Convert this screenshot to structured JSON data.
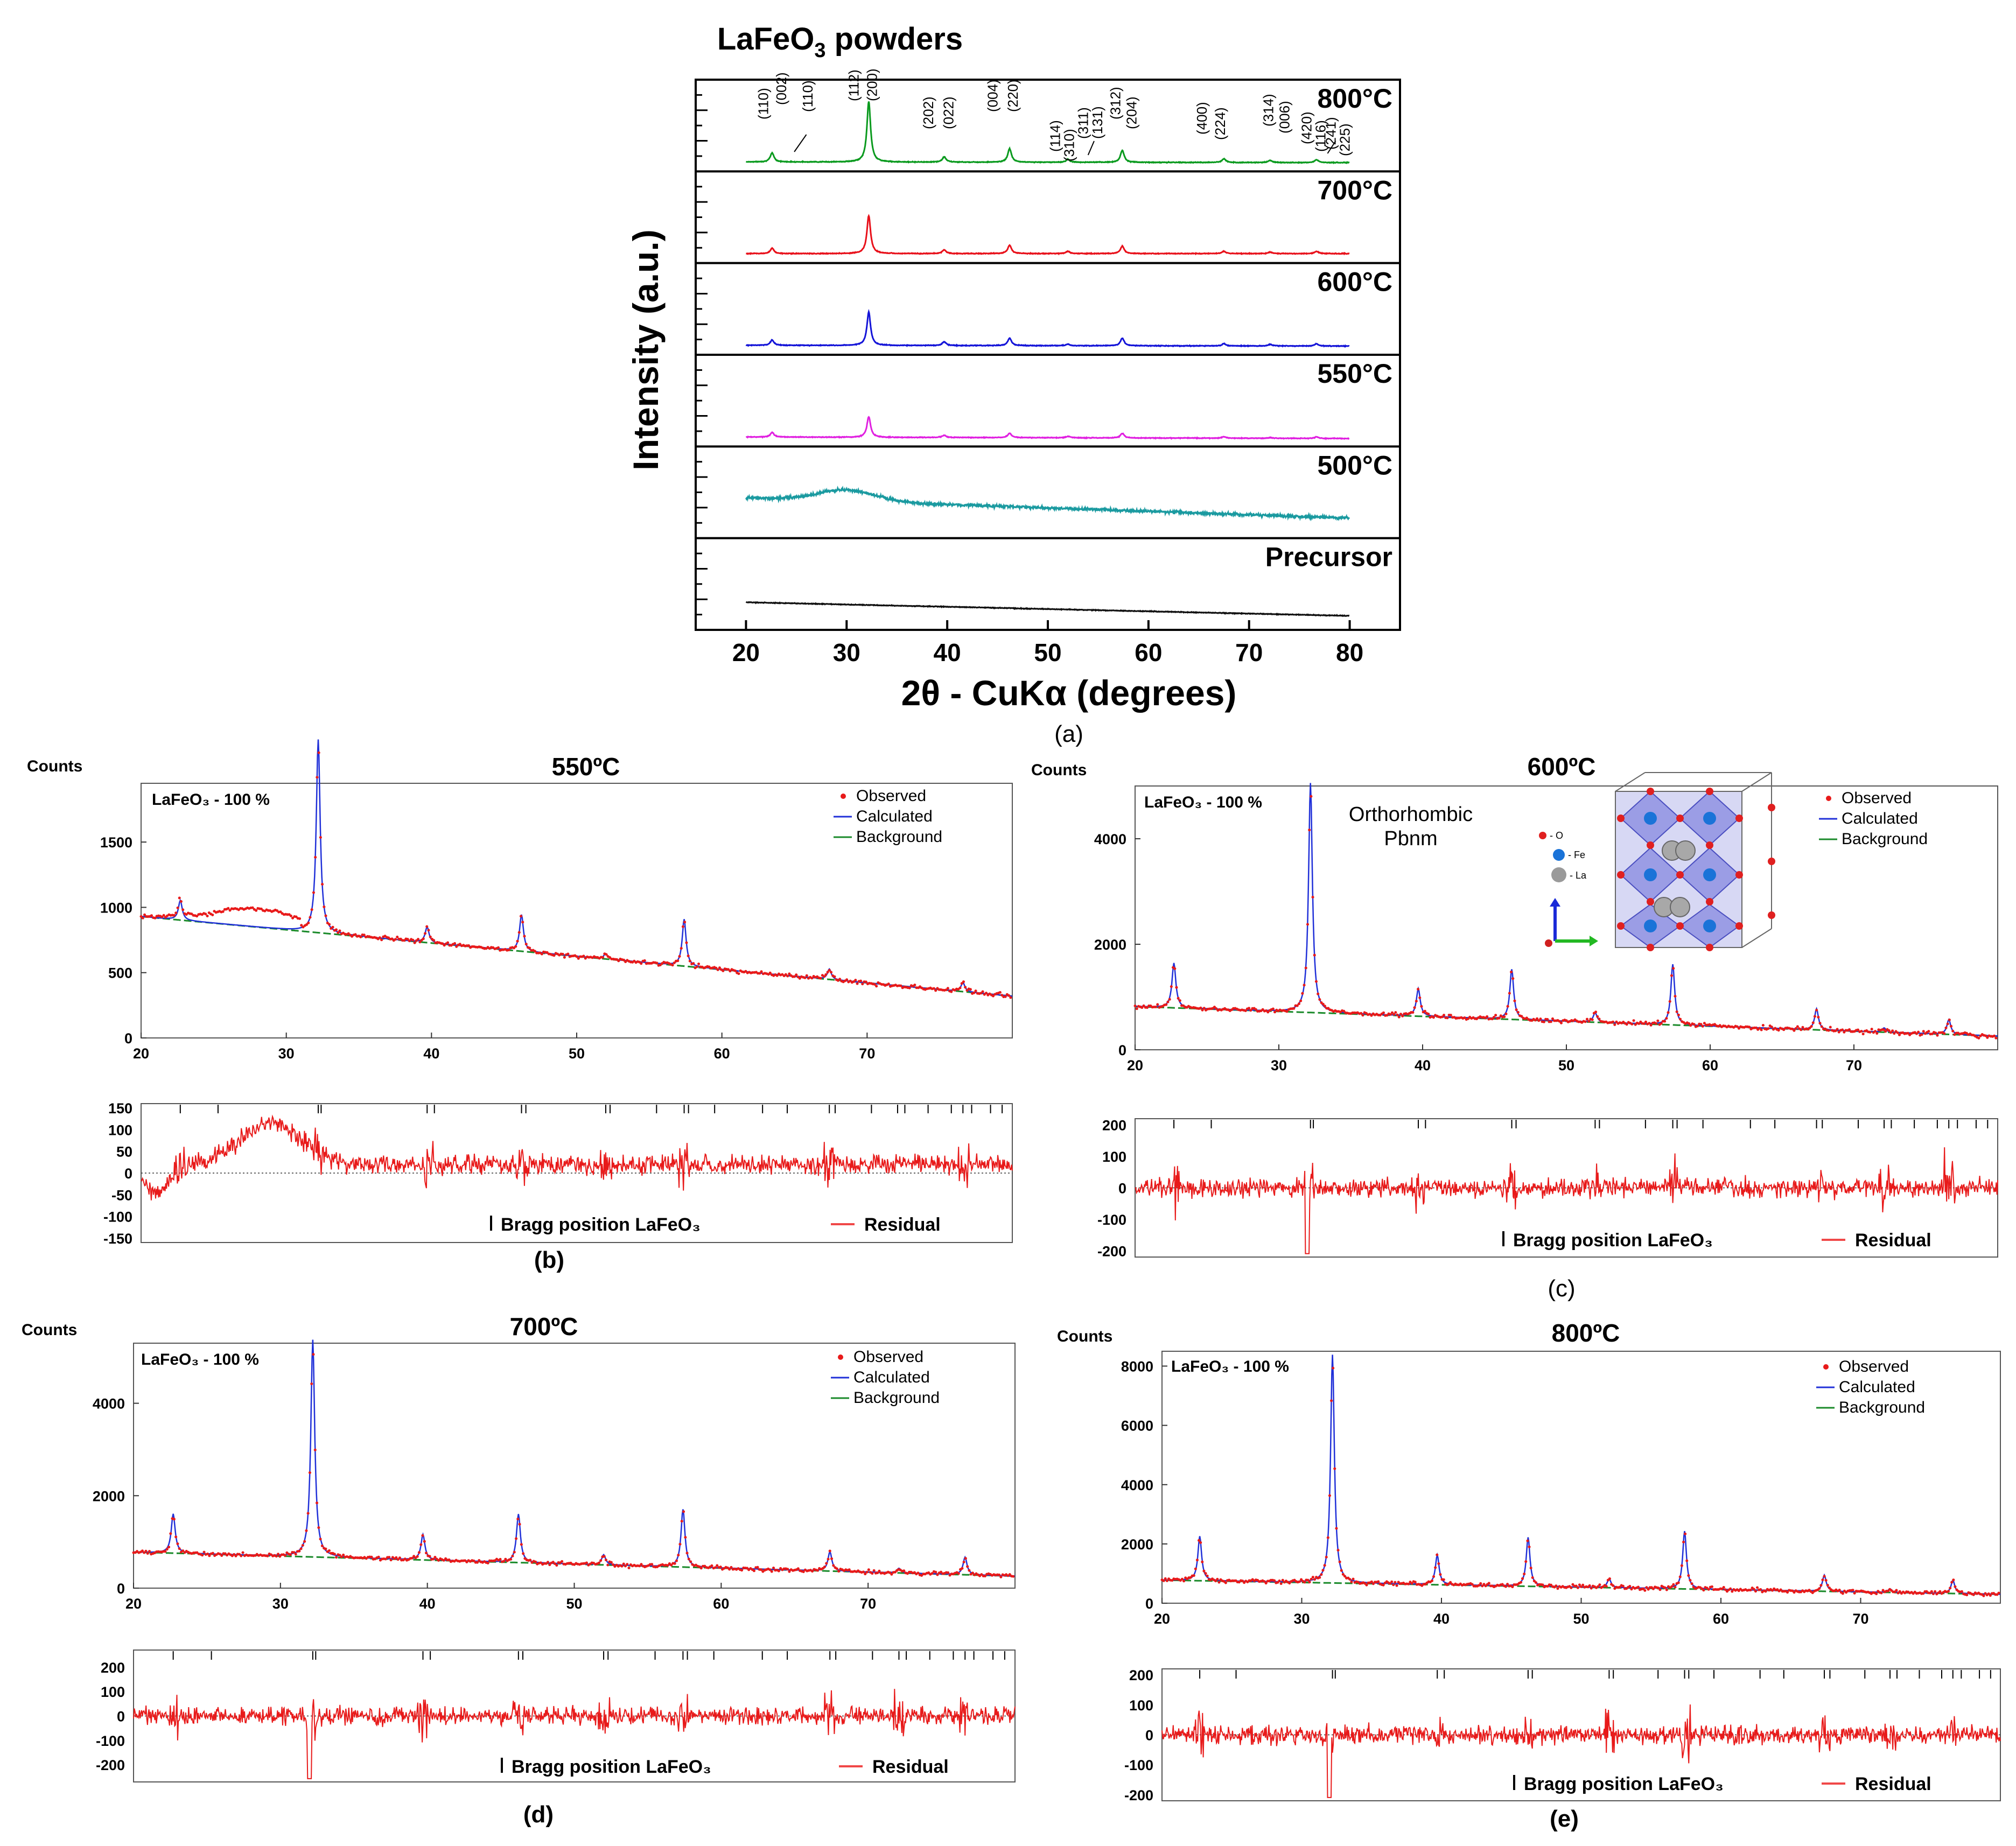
{
  "figure_a": {
    "title_pre": "LaFeO",
    "title_sub": "3",
    "title_post": " powders",
    "ylabel": "Intensity (a.u.)",
    "xlabel": "2θ - CuKα (degrees)",
    "panel_label": "(a)"
  },
  "panel_labels": {
    "b": "(b)",
    "c": "(c)",
    "d": "(d)",
    "e": "(e)"
  },
  "inset": {
    "structure_line1": "Orthorhombic",
    "structure_line2": "Pbnm",
    "legend_o": "- O",
    "legend_fe": "- Fe",
    "legend_la": "- La"
  },
  "chart_data": [
    {
      "type": "line",
      "id": "a",
      "title": "LaFeO3 powders",
      "xlabel": "2θ - CuKα (degrees)",
      "ylabel": "Intensity (a.u.)",
      "xlim": [
        15,
        85
      ],
      "xticks": [
        20,
        30,
        40,
        50,
        60,
        70,
        80
      ],
      "peak_positions": [
        22.6,
        32.2,
        39.7,
        46.2,
        52.0,
        57.4,
        67.5,
        72.1,
        76.7
      ],
      "hkl_labels": [
        "(110)",
        "(002)",
        "(110)",
        "(112)",
        "(200)",
        "(202)",
        "(022)",
        "(004)",
        "(220)",
        "(114)",
        "(310)",
        "(311)",
        "(131)",
        "(312)",
        "(204)",
        "(400)",
        "(224)",
        "(314)",
        "(006)",
        "(420)",
        "(116)",
        "(241)",
        "(225)"
      ],
      "series": [
        {
          "name": "800°C",
          "color": "#0a9a1e",
          "peak_heights": [
            0.12,
            0.8,
            0.07,
            0.18,
            0.04,
            0.16,
            0.05,
            0.03,
            0.04
          ],
          "base_start": 0.04,
          "base_end": 0.03
        },
        {
          "name": "700°C",
          "color": "#e8101a",
          "peak_heights": [
            0.07,
            0.5,
            0.05,
            0.11,
            0.03,
            0.1,
            0.03,
            0.02,
            0.03
          ],
          "base_start": 0.04,
          "base_end": 0.04
        },
        {
          "name": "600°C",
          "color": "#1414d8",
          "peak_heights": [
            0.07,
            0.44,
            0.05,
            0.1,
            0.02,
            0.1,
            0.03,
            0.02,
            0.03
          ],
          "base_start": 0.04,
          "base_end": 0.03
        },
        {
          "name": "550°C",
          "color": "#e020e0",
          "peak_heights": [
            0.06,
            0.27,
            0.03,
            0.06,
            0.02,
            0.06,
            0.02,
            0.01,
            0.02
          ],
          "base_start": 0.04,
          "base_end": 0.02
        },
        {
          "name": "500°C",
          "color": "#1a9aa0",
          "peak_heights": [
            0,
            0,
            0,
            0,
            0,
            0,
            0,
            0,
            0
          ],
          "base_start": 0.45,
          "base_end": 0.18,
          "hump": 0.15
        },
        {
          "name": "Precursor",
          "color": "#111111",
          "peak_heights": [
            0,
            0,
            0,
            0,
            0,
            0,
            0,
            0,
            0
          ],
          "base_start": 0.28,
          "base_end": 0.1
        }
      ]
    },
    {
      "type": "line",
      "id": "b",
      "title": "550ºC",
      "ylabel": "Counts",
      "phase_label": "LaFeO₃ - 100 %",
      "xlim": [
        20,
        80
      ],
      "ylim": [
        0,
        1950
      ],
      "xticks": [
        20,
        30,
        40,
        50,
        60,
        70
      ],
      "yticks": [
        0,
        500,
        1000,
        1500
      ],
      "legend": [
        "Observed",
        "Calculated",
        "Background"
      ],
      "background": [
        930,
        320
      ],
      "peaks": [
        [
          22.7,
          150
        ],
        [
          32.2,
          1480
        ],
        [
          39.7,
          120
        ],
        [
          46.2,
          280
        ],
        [
          52.0,
          40
        ],
        [
          57.4,
          360
        ],
        [
          67.4,
          80
        ],
        [
          76.6,
          70
        ]
      ],
      "residual": {
        "ylim": [
          -160,
          160
        ],
        "yticks": [
          150,
          100,
          50,
          0,
          -50,
          -100,
          -150
        ],
        "legend_bragg": "Bragg position LaFeO₃",
        "legend_resid": "Residual"
      }
    },
    {
      "type": "line",
      "id": "c",
      "title": "600ºC",
      "ylabel": "Counts",
      "phase_label": "LaFeO₃ - 100 %",
      "xlim": [
        20,
        80
      ],
      "ylim": [
        0,
        5000
      ],
      "xticks": [
        20,
        30,
        40,
        50,
        60,
        70
      ],
      "yticks": [
        0,
        2000,
        4000
      ],
      "legend": [
        "Observed",
        "Calculated",
        "Background"
      ],
      "background": [
        820,
        260
      ],
      "peaks": [
        [
          22.7,
          850
        ],
        [
          32.2,
          4350
        ],
        [
          39.7,
          520
        ],
        [
          46.2,
          950
        ],
        [
          52.0,
          180
        ],
        [
          57.4,
          1150
        ],
        [
          67.4,
          400
        ],
        [
          72.1,
          80
        ],
        [
          76.6,
          280
        ]
      ],
      "residual": {
        "ylim": [
          -220,
          220
        ],
        "yticks": [
          200,
          100,
          0,
          -100,
          -200
        ],
        "legend_bragg": "Bragg position LaFeO₃",
        "legend_resid": "Residual"
      }
    },
    {
      "type": "line",
      "id": "d",
      "title": "700ºC",
      "ylabel": "Counts",
      "phase_label": "LaFeO₃ - 100 %",
      "xlim": [
        20,
        80
      ],
      "ylim": [
        0,
        5300
      ],
      "xticks": [
        20,
        30,
        40,
        50,
        60,
        70
      ],
      "yticks": [
        0,
        2000,
        4000
      ],
      "legend": [
        "Observed",
        "Calculated",
        "Background"
      ],
      "background": [
        780,
        260
      ],
      "peaks": [
        [
          22.7,
          850
        ],
        [
          32.2,
          4700
        ],
        [
          39.7,
          550
        ],
        [
          46.2,
          1050
        ],
        [
          52.0,
          220
        ],
        [
          57.4,
          1250
        ],
        [
          67.4,
          420
        ],
        [
          72.1,
          100
        ],
        [
          76.6,
          380
        ]
      ],
      "residual": {
        "ylim": [
          -270,
          270
        ],
        "yticks": [
          200,
          100,
          0,
          -100,
          -200
        ],
        "legend_bragg": "Bragg position LaFeO₃",
        "legend_resid": "Residual"
      }
    },
    {
      "type": "line",
      "id": "e",
      "title": "800ºC",
      "ylabel": "Counts",
      "phase_label": "LaFeO₃ - 100 %",
      "xlim": [
        20,
        80
      ],
      "ylim": [
        0,
        8500
      ],
      "xticks": [
        20,
        30,
        40,
        50,
        60,
        70
      ],
      "yticks": [
        0,
        2000,
        4000,
        6000,
        8000
      ],
      "legend": [
        "Observed",
        "Calculated",
        "Background"
      ],
      "background": [
        780,
        300
      ],
      "peaks": [
        [
          22.7,
          1500
        ],
        [
          32.2,
          7700
        ],
        [
          39.7,
          1000
        ],
        [
          46.2,
          1650
        ],
        [
          52.0,
          300
        ],
        [
          57.4,
          1950
        ],
        [
          67.4,
          550
        ],
        [
          72.1,
          120
        ],
        [
          76.6,
          450
        ]
      ],
      "residual": {
        "ylim": [
          -220,
          220
        ],
        "yticks": [
          200,
          100,
          0,
          -100,
          -200
        ],
        "legend_bragg": "Bragg position LaFeO₃",
        "legend_resid": "Residual"
      }
    }
  ]
}
